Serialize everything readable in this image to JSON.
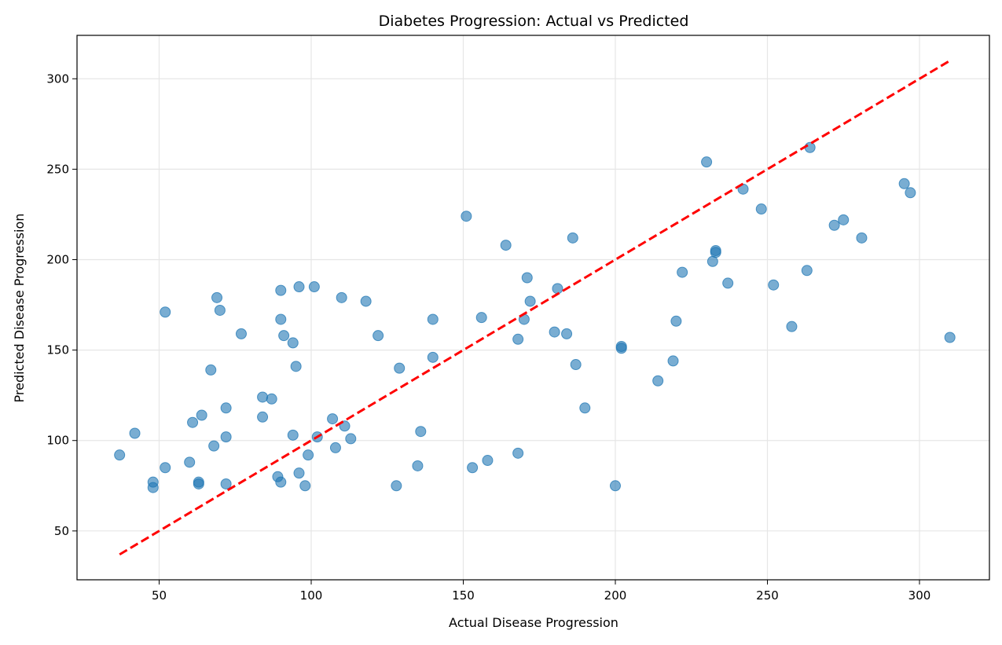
{
  "chart_data": {
    "type": "scatter",
    "title": "Diabetes Progression: Actual vs Predicted",
    "xlabel": "Actual Disease Progression",
    "ylabel": "Predicted Disease Progression",
    "xlim": [
      23,
      323
    ],
    "ylim": [
      23,
      324
    ],
    "xticks": [
      50,
      100,
      150,
      200,
      250,
      300
    ],
    "yticks": [
      50,
      100,
      150,
      200,
      250,
      300
    ],
    "grid": true,
    "point_color": "#1f77b4",
    "reference_line": {
      "style": "dashed",
      "color": "#ff0000",
      "x": [
        37,
        310
      ],
      "y": [
        37,
        310
      ]
    },
    "points": [
      [
        37,
        92
      ],
      [
        42,
        104
      ],
      [
        48,
        77
      ],
      [
        48,
        74
      ],
      [
        52,
        171
      ],
      [
        52,
        85
      ],
      [
        60,
        88
      ],
      [
        61,
        110
      ],
      [
        63,
        77
      ],
      [
        63,
        76
      ],
      [
        64,
        114
      ],
      [
        67,
        139
      ],
      [
        68,
        97
      ],
      [
        69,
        179
      ],
      [
        70,
        172
      ],
      [
        72,
        118
      ],
      [
        72,
        102
      ],
      [
        72,
        76
      ],
      [
        77,
        159
      ],
      [
        84,
        124
      ],
      [
        84,
        113
      ],
      [
        87,
        123
      ],
      [
        89,
        80
      ],
      [
        90,
        77
      ],
      [
        90,
        183
      ],
      [
        90,
        167
      ],
      [
        91,
        158
      ],
      [
        94,
        154
      ],
      [
        94,
        103
      ],
      [
        95,
        141
      ],
      [
        96,
        185
      ],
      [
        96,
        82
      ],
      [
        98,
        75
      ],
      [
        99,
        92
      ],
      [
        101,
        185
      ],
      [
        102,
        102
      ],
      [
        107,
        112
      ],
      [
        108,
        96
      ],
      [
        110,
        179
      ],
      [
        111,
        108
      ],
      [
        113,
        101
      ],
      [
        118,
        177
      ],
      [
        122,
        158
      ],
      [
        128,
        75
      ],
      [
        129,
        140
      ],
      [
        135,
        86
      ],
      [
        136,
        105
      ],
      [
        140,
        167
      ],
      [
        140,
        146
      ],
      [
        151,
        224
      ],
      [
        153,
        85
      ],
      [
        156,
        168
      ],
      [
        158,
        89
      ],
      [
        164,
        208
      ],
      [
        168,
        93
      ],
      [
        168,
        156
      ],
      [
        170,
        167
      ],
      [
        171,
        190
      ],
      [
        172,
        177
      ],
      [
        180,
        160
      ],
      [
        181,
        184
      ],
      [
        184,
        159
      ],
      [
        186,
        212
      ],
      [
        187,
        142
      ],
      [
        190,
        118
      ],
      [
        200,
        75
      ],
      [
        202,
        152
      ],
      [
        202,
        151
      ],
      [
        214,
        133
      ],
      [
        219,
        144
      ],
      [
        220,
        166
      ],
      [
        222,
        193
      ],
      [
        230,
        254
      ],
      [
        232,
        199
      ],
      [
        233,
        205
      ],
      [
        233,
        204
      ],
      [
        237,
        187
      ],
      [
        242,
        239
      ],
      [
        248,
        228
      ],
      [
        252,
        186
      ],
      [
        258,
        163
      ],
      [
        263,
        194
      ],
      [
        264,
        262
      ],
      [
        272,
        219
      ],
      [
        275,
        222
      ],
      [
        281,
        212
      ],
      [
        295,
        242
      ],
      [
        297,
        237
      ],
      [
        310,
        157
      ]
    ]
  }
}
